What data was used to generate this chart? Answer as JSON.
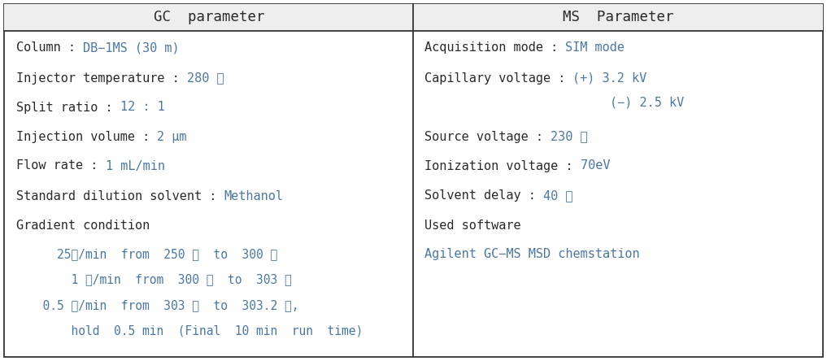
{
  "header_left": "GC  parameter",
  "header_right": "MS  Parameter",
  "black_color": "#2a2a2a",
  "blue_color": "#4878a8",
  "bg_color": "#ffffff",
  "border_color": "#333333",
  "header_bg": "#eeeeee",
  "font_size": 11.0,
  "header_font_size": 12.5,
  "gc_content": [
    {
      "black": "Column : ",
      "blue": "DB−1MS (30 m)"
    },
    {
      "black": "Injector temperature : ",
      "blue": "280 ℃"
    },
    {
      "black": "Split ratio : ",
      "blue": "12 : 1"
    },
    {
      "black": "Injection volume : ",
      "blue": "2 μm"
    },
    {
      "black": "Flow rate : ",
      "blue": "1 mL/min"
    },
    {
      "black": "Standard dilution solvent : ",
      "blue": "Methanol"
    },
    {
      "black": "Gradient condition",
      "blue": ""
    }
  ],
  "gc_gradient": [
    "    25℃/min  from  250 ℃  to  300 ℃",
    "      1 ℃/min  from  300 ℃  to  303 ℃",
    "  0.5 ℃/min  from  303 ℃  to  303.2 ℃,",
    "      hold  0.5 min  (Final  10 min  run  time)"
  ],
  "ms_content": [
    {
      "black": "Acquisition mode : ",
      "blue": "SIM mode"
    },
    {
      "black": "Capillary voltage : ",
      "blue": "(+) 3.2 kV"
    },
    {
      "black": "                         ",
      "blue": "(−) 2.5 kV"
    },
    {
      "black": "Source voltage : ",
      "blue": "230 ℃"
    },
    {
      "black": "Ionization voltage : ",
      "blue": "70eV"
    },
    {
      "black": "Solvent delay : ",
      "blue": "40 ℃"
    },
    {
      "black": "Used software",
      "blue": ""
    },
    {
      "black": "",
      "blue": "Agilent GC−MS MSD chemstation"
    }
  ]
}
